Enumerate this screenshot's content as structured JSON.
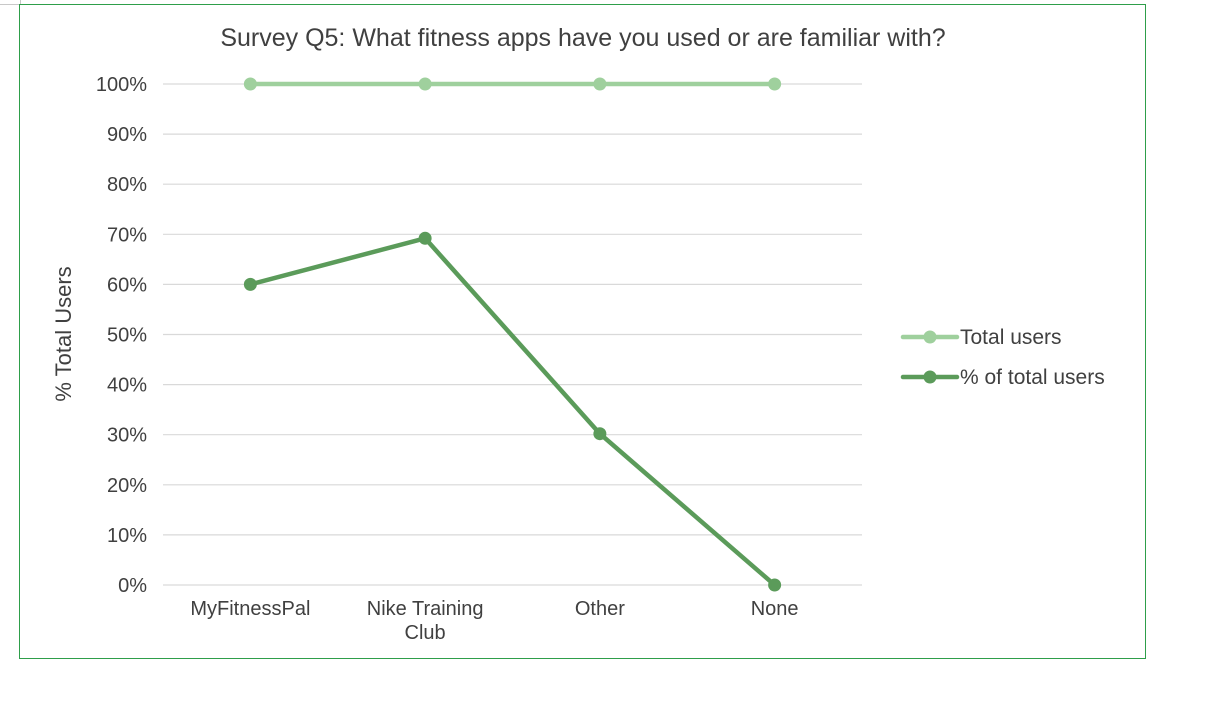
{
  "chart_data": {
    "type": "line",
    "title": "Survey Q5: What fitness apps have you used or are familiar with?",
    "xlabel": "",
    "ylabel": "% Total Users",
    "categories": [
      [
        "MyFitnessPal"
      ],
      [
        "Nike Training",
        "Club"
      ],
      [
        "Other"
      ],
      [
        "None"
      ]
    ],
    "series": [
      {
        "name": "Total users",
        "values": [
          100,
          100,
          100,
          100
        ],
        "color": "#9fd09d"
      },
      {
        "name": "% of total users",
        "values": [
          60,
          69.2,
          30.2,
          0
        ],
        "color": "#5b9b5a"
      }
    ],
    "ylim": [
      0,
      100
    ],
    "yticks": [
      "0%",
      "10%",
      "20%",
      "30%",
      "40%",
      "50%",
      "60%",
      "70%",
      "80%",
      "90%",
      "100%"
    ],
    "grid": true,
    "legend_position": "right",
    "frame_color": "#2e9e4a",
    "grid_color": "#d9d9d9"
  }
}
